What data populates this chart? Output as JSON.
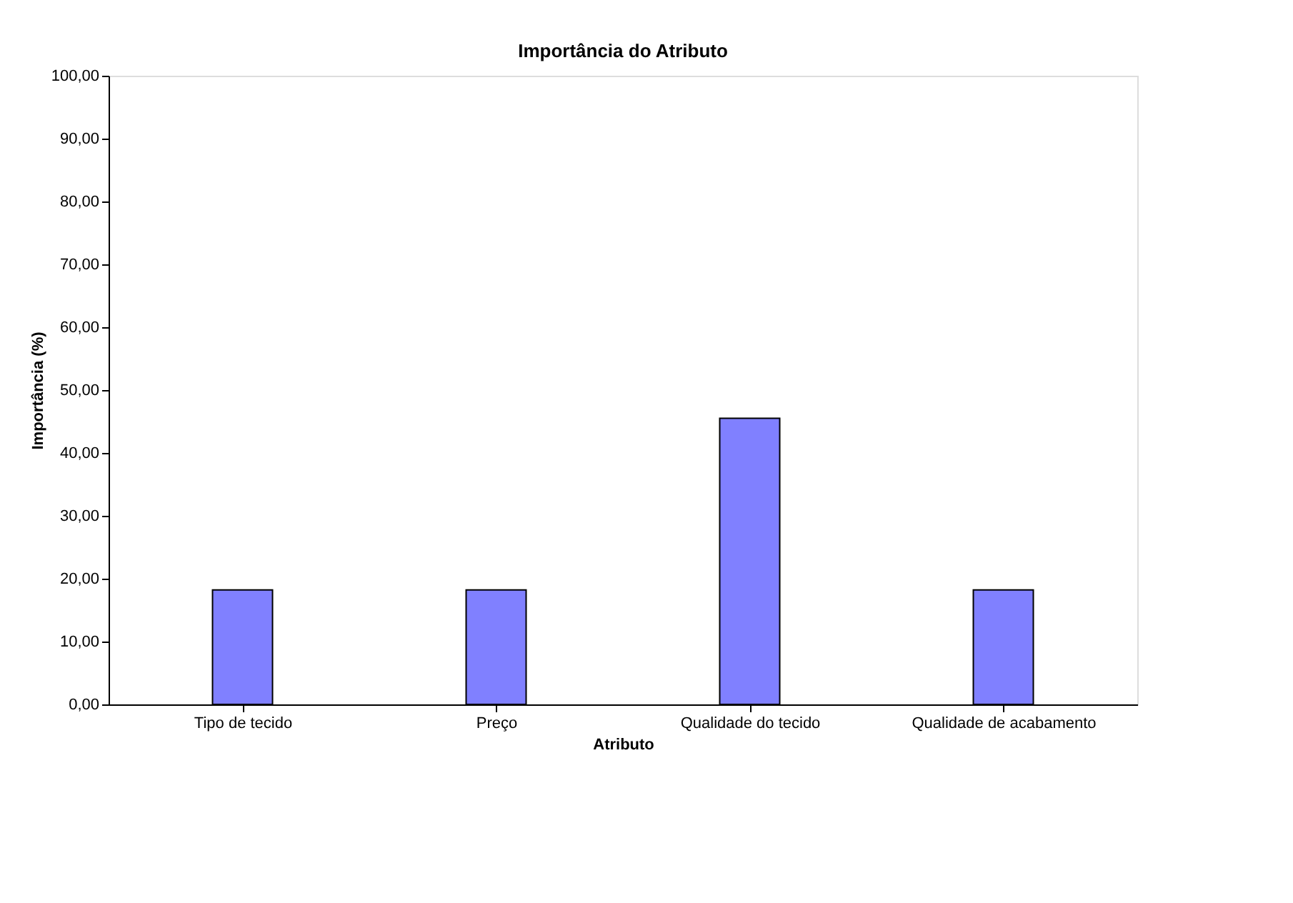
{
  "chart_data": {
    "type": "bar",
    "title": "Importância do Atributo",
    "xlabel": "Atributo",
    "ylabel": "Importância (%)",
    "categories": [
      "Tipo de tecido",
      "Preço",
      "Qualidade do tecido",
      "Qualidade de acabamento"
    ],
    "series": [
      {
        "color": "#8080ff",
        "values": [
          18.2,
          18.2,
          45.5,
          18.2
        ]
      }
    ],
    "ylim": [
      0,
      100
    ],
    "yticks": [
      {
        "value": 0,
        "label": "0,00"
      },
      {
        "value": 10,
        "label": "10,00"
      },
      {
        "value": 20,
        "label": "20,00"
      },
      {
        "value": 30,
        "label": "30,00"
      },
      {
        "value": 40,
        "label": "40,00"
      },
      {
        "value": 50,
        "label": "50,00"
      },
      {
        "value": 60,
        "label": "60,00"
      },
      {
        "value": 70,
        "label": "70,00"
      },
      {
        "value": 80,
        "label": "80,00"
      },
      {
        "value": 90,
        "label": "90,00"
      },
      {
        "value": 100,
        "label": "100,00"
      }
    ],
    "grid": false
  }
}
